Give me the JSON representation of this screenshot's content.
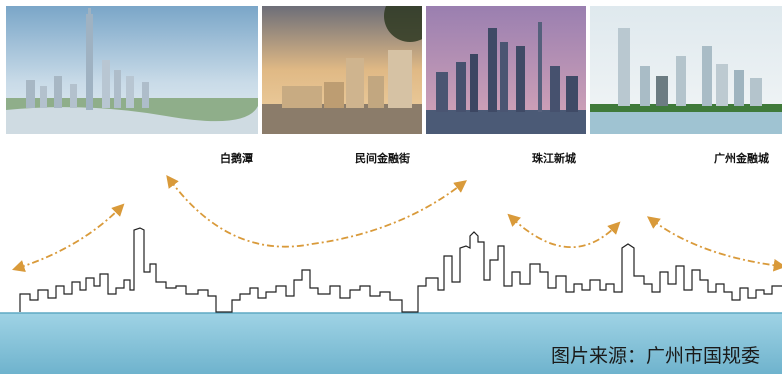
{
  "districts": [
    {
      "label": "白鹅潭"
    },
    {
      "label": "民间金融街"
    },
    {
      "label": "珠江新城"
    },
    {
      "label": "广州金融城"
    }
  ],
  "credit": "图片来源：广州市国规委",
  "colors": {
    "water": "#8ecadf",
    "water_dark": "#5fa9c4",
    "arrow": "#d99a3a",
    "skyline": "#222222"
  }
}
